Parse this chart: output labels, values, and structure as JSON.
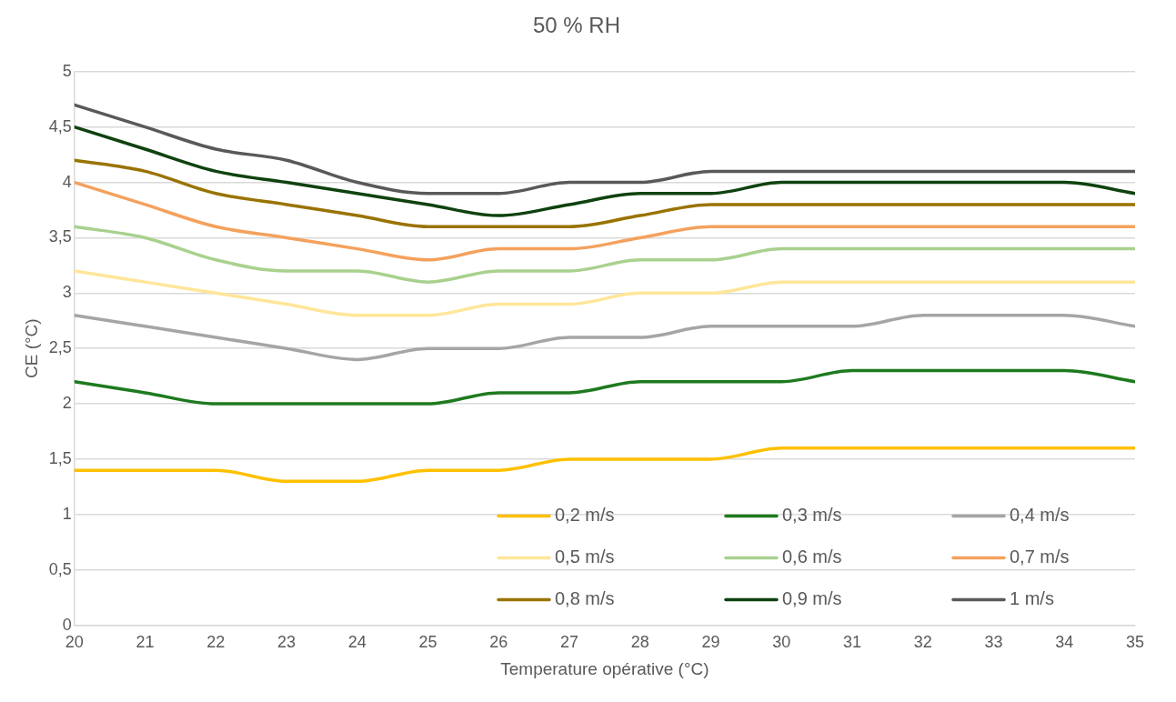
{
  "chart_data": {
    "type": "line",
    "title": "50 % RH",
    "xlabel": "Temperature opérative (°C)",
    "ylabel": "CE (°C)",
    "x": [
      20,
      21,
      22,
      23,
      24,
      25,
      26,
      27,
      28,
      29,
      30,
      31,
      32,
      33,
      34,
      35
    ],
    "xlim": [
      20,
      35
    ],
    "xticks": [
      20,
      21,
      22,
      23,
      24,
      25,
      26,
      27,
      28,
      29,
      30,
      31,
      32,
      33,
      34,
      35
    ],
    "ylim": [
      0,
      5
    ],
    "yticks": [
      0,
      {
        "value": 0.5,
        "label": "0,5"
      },
      1,
      {
        "value": 1.5,
        "label": "1,5"
      },
      2,
      {
        "value": 2.5,
        "label": "2,5"
      },
      3,
      {
        "value": 3.5,
        "label": "3,5"
      },
      4,
      {
        "value": 4.5,
        "label": "4,5"
      },
      5
    ],
    "grid": "y",
    "legend": "bottom right",
    "marker": "none",
    "line_style": "solid",
    "series": [
      {
        "name": "0,2 m/s",
        "color": "#ffc000",
        "values": [
          1.4,
          1.4,
          1.4,
          1.3,
          1.3,
          1.4,
          1.4,
          1.5,
          1.5,
          1.5,
          1.6,
          1.6,
          1.6,
          1.6,
          1.6,
          1.6
        ]
      },
      {
        "name": "0,3 m/s",
        "color": "#1e7a1e",
        "values": [
          2.2,
          2.1,
          2.0,
          2.0,
          2.0,
          2.0,
          2.1,
          2.1,
          2.2,
          2.2,
          2.2,
          2.3,
          2.3,
          2.3,
          2.3,
          2.2
        ]
      },
      {
        "name": "0,4 m/s",
        "color": "#a5a5a5",
        "values": [
          2.8,
          2.7,
          2.6,
          2.5,
          2.4,
          2.5,
          2.5,
          2.6,
          2.6,
          2.7,
          2.7,
          2.7,
          2.8,
          2.8,
          2.8,
          2.7
        ]
      },
      {
        "name": "0,5 m/s",
        "color": "#ffe699",
        "values": [
          3.2,
          3.1,
          3.0,
          2.9,
          2.8,
          2.8,
          2.9,
          2.9,
          3.0,
          3.0,
          3.1,
          3.1,
          3.1,
          3.1,
          3.1,
          3.1
        ]
      },
      {
        "name": "0,6 m/s",
        "color": "#a9d18e",
        "values": [
          3.6,
          3.5,
          3.3,
          3.2,
          3.2,
          3.1,
          3.2,
          3.2,
          3.3,
          3.3,
          3.4,
          3.4,
          3.4,
          3.4,
          3.4,
          3.4
        ]
      },
      {
        "name": "0,7 m/s",
        "color": "#f4a15d",
        "values": [
          4.0,
          3.8,
          3.6,
          3.5,
          3.4,
          3.3,
          3.4,
          3.4,
          3.5,
          3.6,
          3.6,
          3.6,
          3.6,
          3.6,
          3.6,
          3.6
        ]
      },
      {
        "name": "0,8 m/s",
        "color": "#997300",
        "values": [
          4.2,
          4.1,
          3.9,
          3.8,
          3.7,
          3.6,
          3.6,
          3.6,
          3.7,
          3.8,
          3.8,
          3.8,
          3.8,
          3.8,
          3.8,
          3.8
        ]
      },
      {
        "name": "0,9 m/s",
        "color": "#0f420f",
        "values": [
          4.5,
          4.3,
          4.1,
          4.0,
          3.9,
          3.8,
          3.7,
          3.8,
          3.9,
          3.9,
          4.0,
          4.0,
          4.0,
          4.0,
          4.0,
          3.9
        ]
      },
      {
        "name": "1 m/s",
        "color": "#595959",
        "values": [
          4.7,
          4.5,
          4.3,
          4.2,
          4.0,
          3.9,
          3.9,
          4.0,
          4.0,
          4.1,
          4.1,
          4.1,
          4.1,
          4.1,
          4.1,
          4.1
        ]
      }
    ]
  }
}
